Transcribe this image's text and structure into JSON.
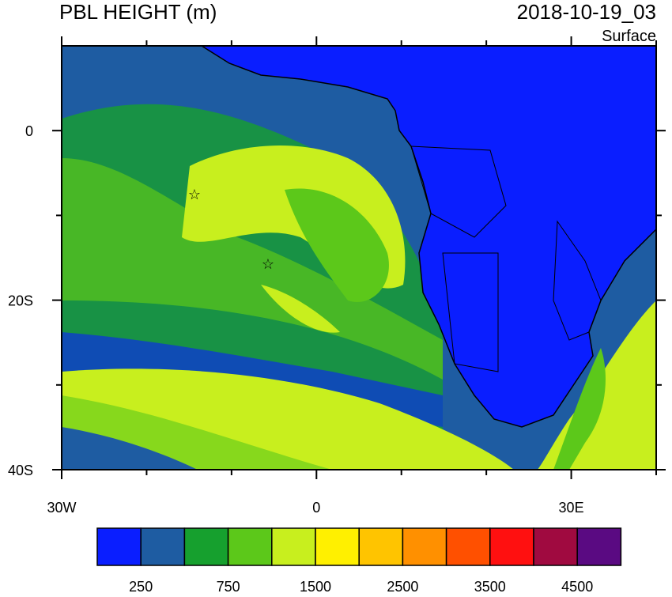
{
  "header": {
    "title": "PBL HEIGHT (m)",
    "time": "2018-10-19_03",
    "level": "Surface"
  },
  "map": {
    "lon_range": [
      -30,
      40
    ],
    "lat_range": [
      -40,
      10
    ],
    "lon_ticks": [
      {
        "value": -30,
        "label": "30W"
      },
      0,
      {
        "value": 30,
        "label": "30E"
      }
    ],
    "lat_ticks": [
      0,
      {
        "value": -20,
        "label": "20S"
      },
      {
        "value": -40,
        "label": "40S"
      }
    ],
    "lon_minor_ticks": [
      -20,
      -10,
      10,
      20,
      40
    ],
    "lat_minor_ticks": [
      -10,
      -30
    ]
  },
  "colorbar": {
    "colors": [
      "#0a1eff",
      "#1e5ca2",
      "#16a02e",
      "#5cc81a",
      "#c8ef1e",
      "#fff000",
      "#ffc400",
      "#ff9000",
      "#ff5000",
      "#ff1010",
      "#a00a40",
      "#5a0a82"
    ],
    "labels": [
      250,
      750,
      1500,
      2500,
      3500,
      4500
    ]
  }
}
